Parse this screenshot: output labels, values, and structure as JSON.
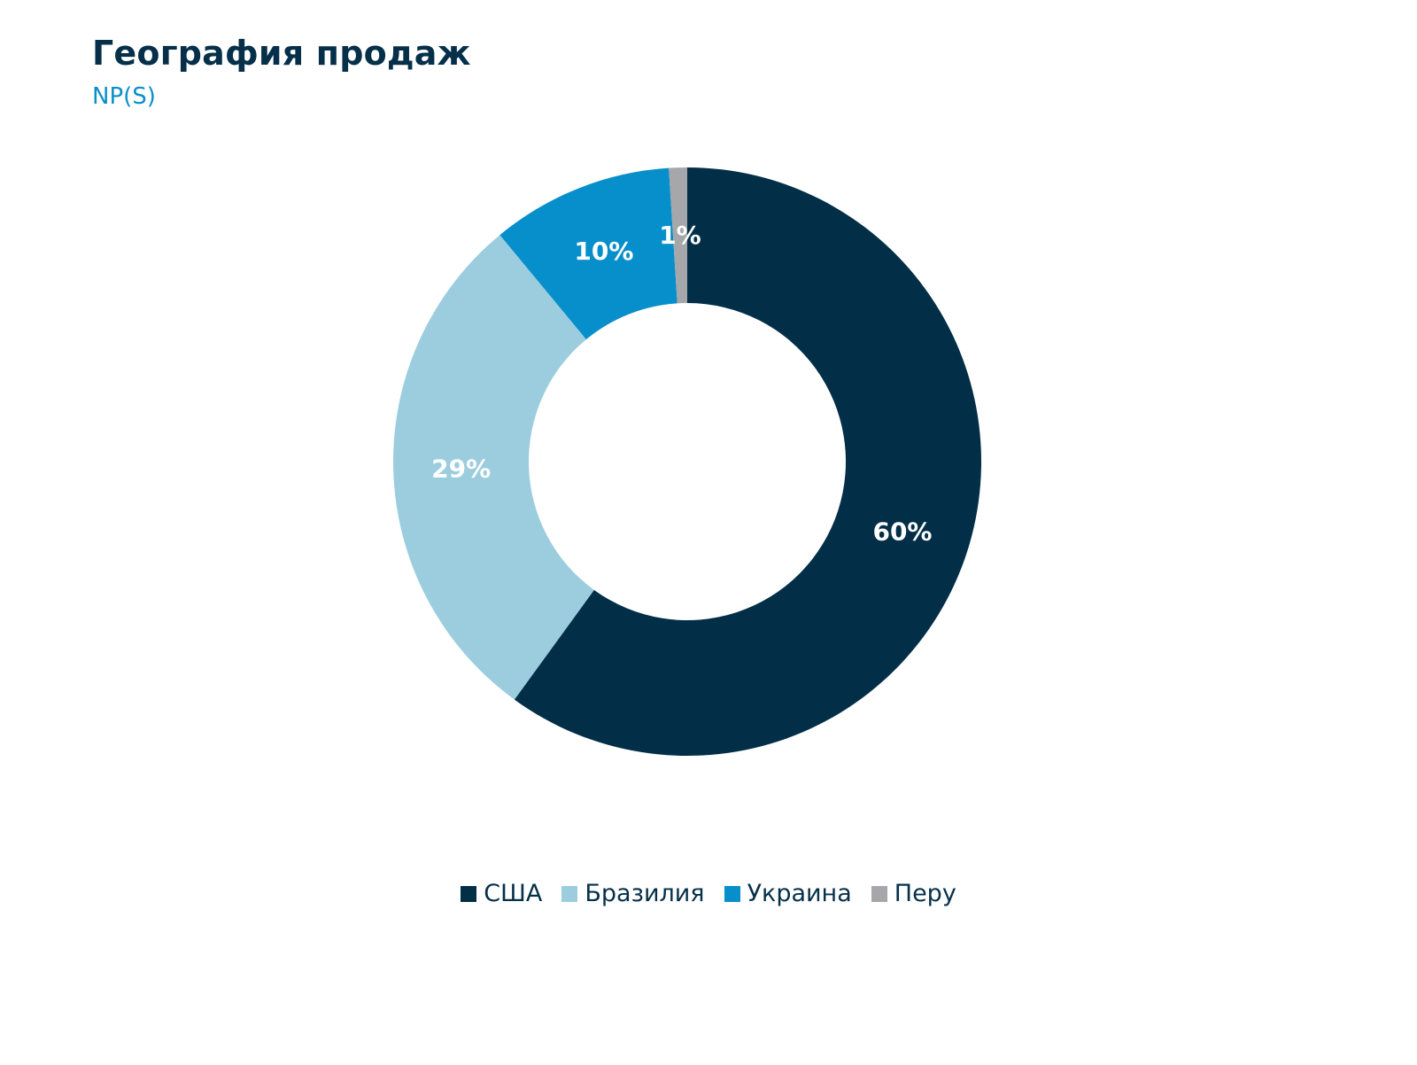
{
  "chart_data": {
    "type": "pie",
    "title": "География продаж",
    "subtitle": "NP(S)",
    "donut": true,
    "legend_position": "bottom",
    "series": [
      {
        "name": "США",
        "value": 60,
        "label": "60%",
        "color": "#022f47"
      },
      {
        "name": "Бразилия",
        "value": 29,
        "label": "29%",
        "color": "#9ccddf"
      },
      {
        "name": "Украина",
        "value": 10,
        "label": "10%",
        "color": "#078fcb"
      },
      {
        "name": "Перу",
        "value": 1,
        "label": "1%",
        "color": "#a5a7aa"
      }
    ]
  }
}
